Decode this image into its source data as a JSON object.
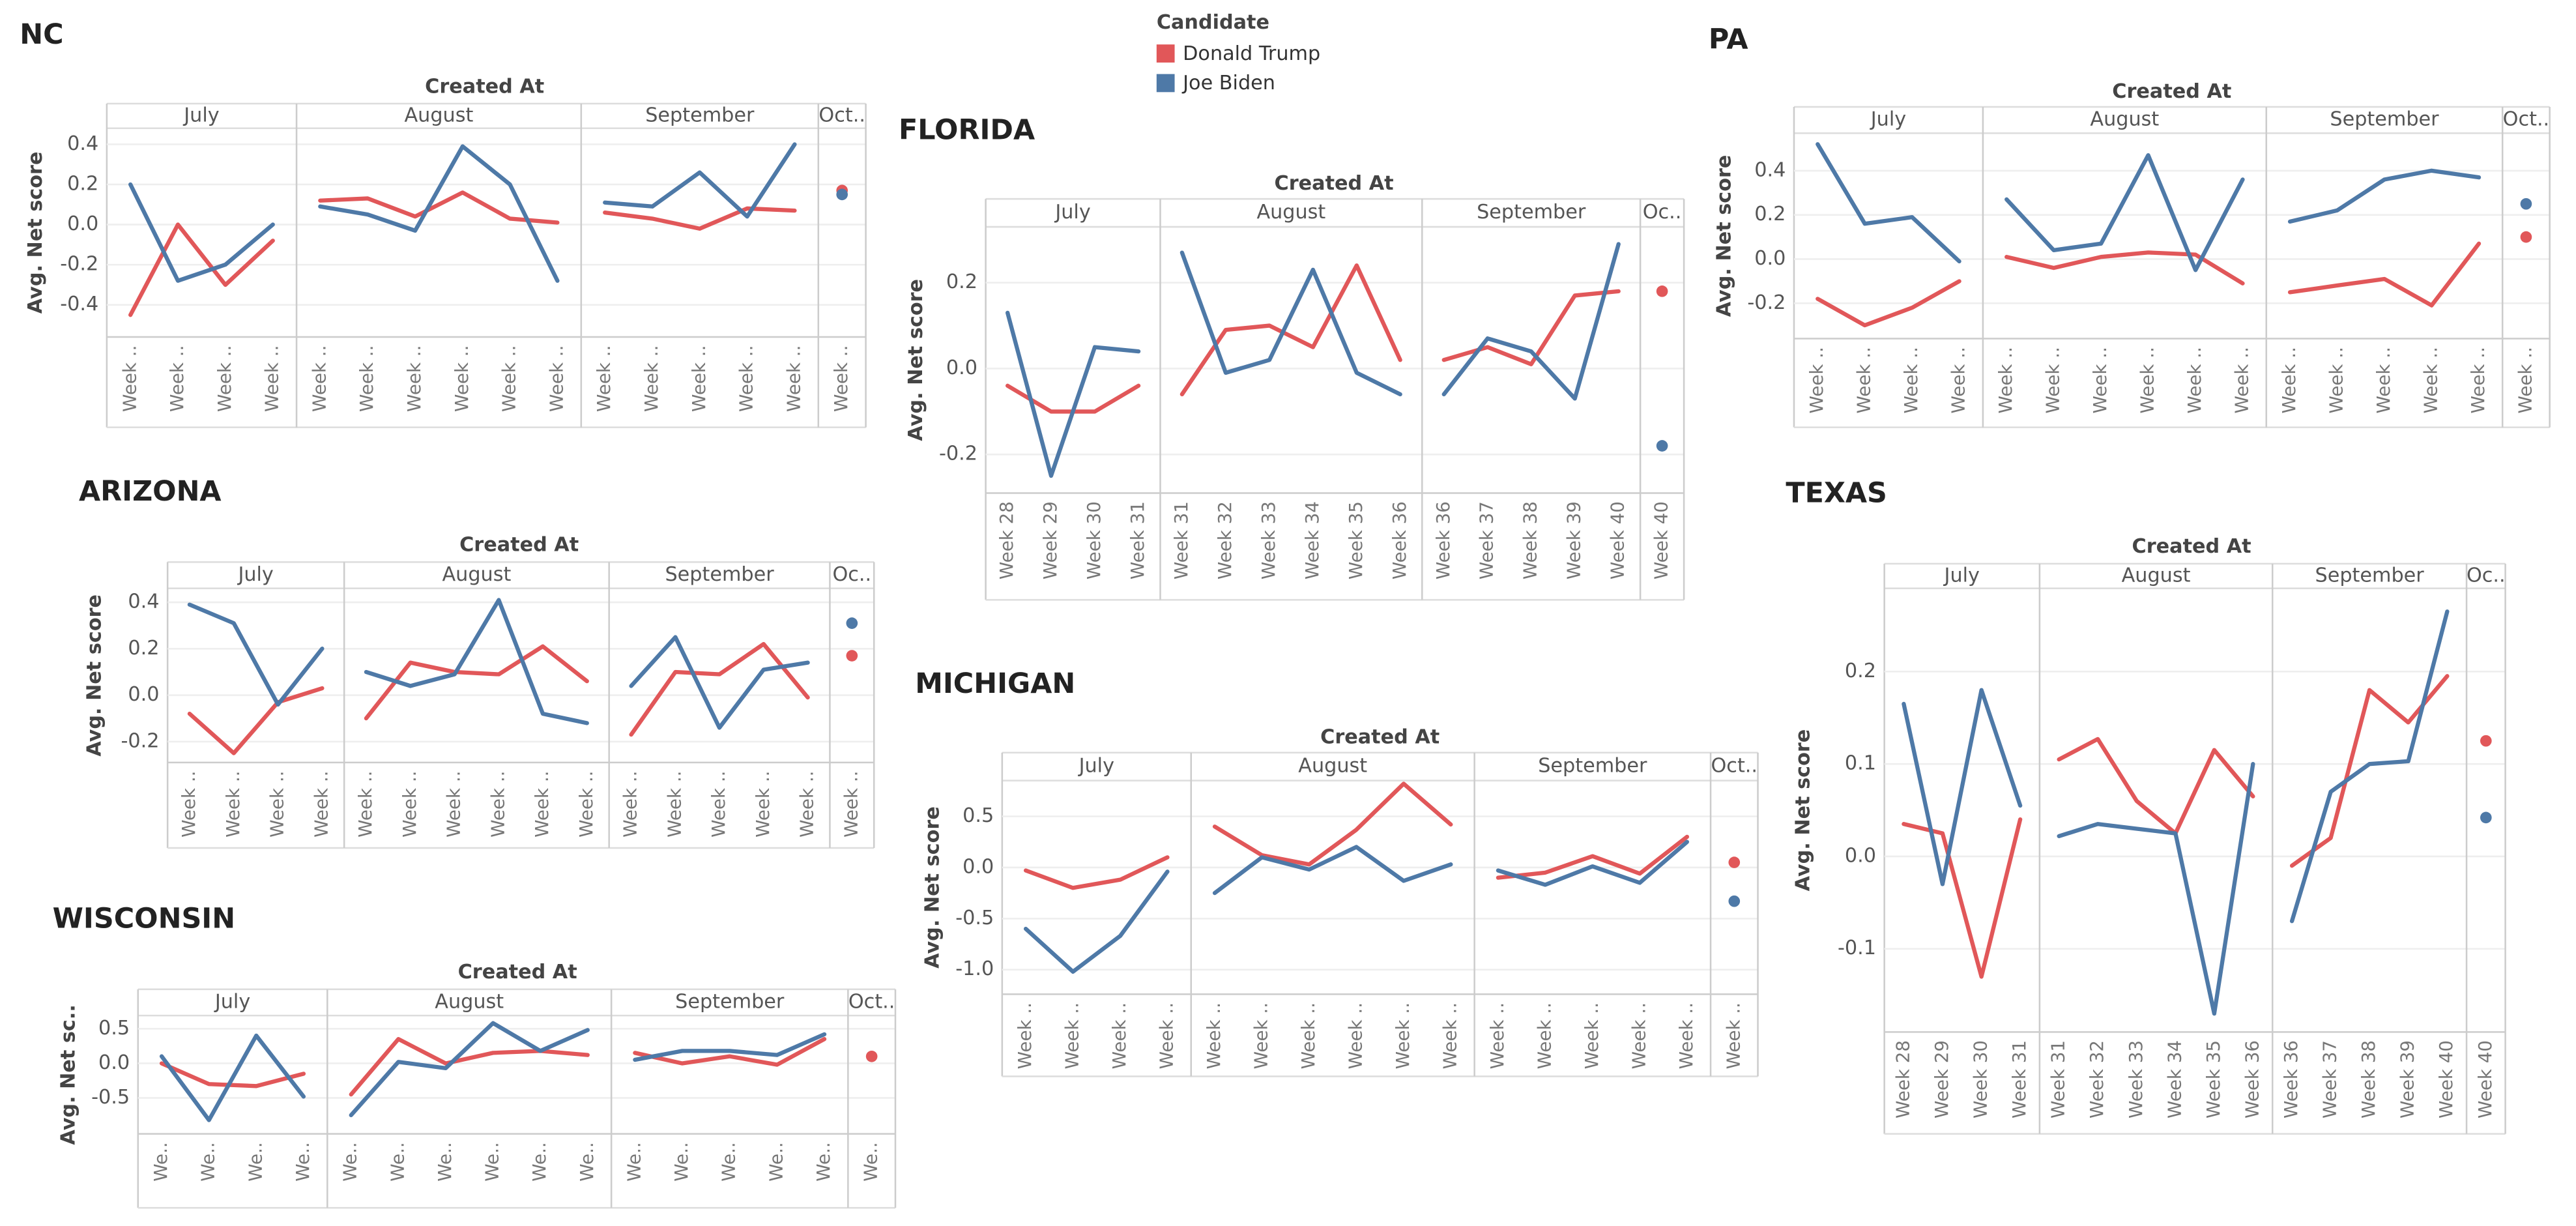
{
  "legend": {
    "title": "Candidate",
    "items": [
      {
        "name": "Donald Trump",
        "color": "#e15759"
      },
      {
        "name": "Joe Biden",
        "color": "#4e79a7"
      }
    ]
  },
  "chart_data": [
    {
      "type": "line",
      "title": "NC",
      "x_header": "Created At",
      "ylabel": "Avg. Net score",
      "ylim": [
        -0.56,
        0.48
      ],
      "yticks": [
        -0.4,
        -0.2,
        {
          "value": 0,
          "label": "0.0"
        },
        0.2,
        0.4
      ],
      "grid": true,
      "panels": [
        {
          "label": "July",
          "categories": [
            "Week ..",
            "Week ..",
            "Week ..",
            "Week .."
          ],
          "series": [
            {
              "values": [
                -0.45,
                0.0,
                -0.3,
                -0.08
              ]
            },
            {
              "values": [
                0.2,
                -0.28,
                -0.2,
                0.0
              ]
            }
          ]
        },
        {
          "label": "August",
          "categories": [
            "Week ..",
            "Week ..",
            "Week ..",
            "Week ..",
            "Week ..",
            "Week .."
          ],
          "series": [
            {
              "values": [
                0.12,
                0.13,
                0.04,
                0.16,
                0.03,
                0.01
              ]
            },
            {
              "values": [
                0.09,
                0.05,
                -0.03,
                0.39,
                0.2,
                -0.28
              ]
            }
          ]
        },
        {
          "label": "September",
          "categories": [
            "Week ..",
            "Week ..",
            "Week ..",
            "Week ..",
            "Week .."
          ],
          "series": [
            {
              "values": [
                0.06,
                0.03,
                -0.02,
                0.08,
                0.07
              ]
            },
            {
              "values": [
                0.11,
                0.09,
                0.26,
                0.04,
                0.4
              ]
            }
          ]
        },
        {
          "label": "Oct..",
          "categories": [
            "Week .."
          ],
          "series": [
            {
              "values": [
                0.17
              ]
            },
            {
              "values": [
                0.15
              ]
            }
          ]
        }
      ]
    },
    {
      "type": "line",
      "title": "FLORIDA",
      "x_header": "Created At",
      "ylabel": "Avg. Net score",
      "ylim": [
        -0.29,
        0.33
      ],
      "yticks": [
        -0.2,
        {
          "value": 0,
          "label": "0.0"
        },
        0.2
      ],
      "grid": true,
      "panels": [
        {
          "label": "July",
          "categories": [
            "Week 28",
            "Week 29",
            "Week 30",
            "Week 31"
          ],
          "series": [
            {
              "values": [
                -0.04,
                -0.1,
                -0.1,
                -0.04
              ]
            },
            {
              "values": [
                0.13,
                -0.25,
                0.05,
                0.04
              ]
            }
          ]
        },
        {
          "label": "August",
          "categories": [
            "Week 31",
            "Week 32",
            "Week 33",
            "Week 34",
            "Week 35",
            "Week 36"
          ],
          "series": [
            {
              "values": [
                -0.06,
                0.09,
                0.1,
                0.05,
                0.24,
                0.02
              ]
            },
            {
              "values": [
                0.27,
                -0.01,
                0.02,
                0.23,
                -0.01,
                -0.06
              ]
            }
          ]
        },
        {
          "label": "September",
          "categories": [
            "Week 36",
            "Week 37",
            "Week 38",
            "Week 39",
            "Week 40"
          ],
          "series": [
            {
              "values": [
                0.02,
                0.05,
                0.01,
                0.17,
                0.18
              ]
            },
            {
              "values": [
                -0.06,
                0.07,
                0.04,
                -0.07,
                0.29
              ]
            }
          ]
        },
        {
          "label": "Oc..",
          "categories": [
            "Week 40"
          ],
          "series": [
            {
              "values": [
                0.18
              ]
            },
            {
              "values": [
                -0.18
              ]
            }
          ]
        }
      ]
    },
    {
      "type": "line",
      "title": "PA",
      "x_header": "Created At",
      "ylabel": "Avg. Net score",
      "ylim": [
        -0.36,
        0.57
      ],
      "yticks": [
        -0.2,
        {
          "value": 0,
          "label": "0.0"
        },
        0.2,
        0.4
      ],
      "grid": true,
      "panels": [
        {
          "label": "July",
          "categories": [
            "Week ..",
            "Week ..",
            "Week ..",
            "Week .."
          ],
          "series": [
            {
              "values": [
                -0.18,
                -0.3,
                -0.22,
                -0.1
              ]
            },
            {
              "values": [
                0.52,
                0.16,
                0.19,
                -0.01
              ]
            }
          ]
        },
        {
          "label": "August",
          "categories": [
            "Week ..",
            "Week ..",
            "Week ..",
            "Week ..",
            "Week ..",
            "Week .."
          ],
          "series": [
            {
              "values": [
                0.01,
                -0.04,
                0.01,
                0.03,
                0.02,
                -0.11
              ]
            },
            {
              "values": [
                0.27,
                0.04,
                0.07,
                0.47,
                -0.05,
                0.36
              ]
            }
          ]
        },
        {
          "label": "September",
          "categories": [
            "Week ..",
            "Week ..",
            "Week ..",
            "Week ..",
            "Week .."
          ],
          "series": [
            {
              "values": [
                -0.15,
                -0.12,
                -0.09,
                -0.21,
                0.07
              ]
            },
            {
              "values": [
                0.17,
                0.22,
                0.36,
                0.4,
                0.37
              ]
            }
          ]
        },
        {
          "label": "Oct..",
          "categories": [
            "Week .."
          ],
          "series": [
            {
              "values": [
                0.1
              ]
            },
            {
              "values": [
                0.25
              ]
            }
          ]
        }
      ]
    },
    {
      "type": "line",
      "title": "ARIZONA",
      "x_header": "Created At",
      "ylabel": "Avg. Net score",
      "ylim": [
        -0.29,
        0.46
      ],
      "yticks": [
        -0.2,
        {
          "value": 0,
          "label": "0.0"
        },
        0.2,
        0.4
      ],
      "grid": true,
      "panels": [
        {
          "label": "July",
          "categories": [
            "Week ..",
            "Week ..",
            "Week ..",
            "Week .."
          ],
          "series": [
            {
              "values": [
                -0.08,
                -0.25,
                -0.03,
                0.03
              ]
            },
            {
              "values": [
                0.39,
                0.31,
                -0.04,
                0.2
              ]
            }
          ]
        },
        {
          "label": "August",
          "categories": [
            "Week ..",
            "Week ..",
            "Week ..",
            "Week ..",
            "Week ..",
            "Week .."
          ],
          "series": [
            {
              "values": [
                -0.1,
                0.14,
                0.1,
                0.09,
                0.21,
                0.06
              ]
            },
            {
              "values": [
                0.1,
                0.04,
                0.09,
                0.41,
                -0.08,
                -0.12
              ]
            }
          ]
        },
        {
          "label": "September",
          "categories": [
            "Week ..",
            "Week ..",
            "Week ..",
            "Week ..",
            "Week .."
          ],
          "series": [
            {
              "values": [
                -0.17,
                0.1,
                0.09,
                0.22,
                -0.01
              ]
            },
            {
              "values": [
                0.04,
                0.25,
                -0.14,
                0.11,
                0.14
              ]
            }
          ]
        },
        {
          "label": "Oc..",
          "categories": [
            "Week .."
          ],
          "series": [
            {
              "values": [
                0.17
              ]
            },
            {
              "values": [
                0.31
              ]
            }
          ]
        }
      ]
    },
    {
      "type": "line",
      "title": "MICHIGAN",
      "x_header": "Created At",
      "ylabel": "Avg. Net score",
      "ylim": [
        -1.24,
        0.85
      ],
      "yticks": [
        {
          "value": -1,
          "label": "-1.0"
        },
        -0.5,
        {
          "value": 0,
          "label": "0.0"
        },
        0.5
      ],
      "grid": true,
      "panels": [
        {
          "label": "July",
          "categories": [
            "Week ..",
            "Week ..",
            "Week ..",
            "Week .."
          ],
          "series": [
            {
              "values": [
                -0.03,
                -0.2,
                -0.12,
                0.1
              ]
            },
            {
              "values": [
                -0.6,
                -1.02,
                -0.67,
                -0.04
              ]
            }
          ]
        },
        {
          "label": "August",
          "categories": [
            "Week ..",
            "Week ..",
            "Week ..",
            "Week ..",
            "Week ..",
            "Week .."
          ],
          "series": [
            {
              "values": [
                0.4,
                0.12,
                0.03,
                0.37,
                0.82,
                0.42
              ]
            },
            {
              "values": [
                -0.25,
                0.1,
                -0.02,
                0.2,
                -0.13,
                0.03
              ]
            }
          ]
        },
        {
          "label": "September",
          "categories": [
            "Week ..",
            "Week ..",
            "Week ..",
            "Week ..",
            "Week .."
          ],
          "series": [
            {
              "values": [
                -0.1,
                -0.05,
                0.11,
                -0.06,
                0.3
              ]
            },
            {
              "values": [
                -0.03,
                -0.17,
                0.01,
                -0.15,
                0.25
              ]
            }
          ]
        },
        {
          "label": "Oct..",
          "categories": [
            "Week .."
          ],
          "series": [
            {
              "values": [
                0.05
              ]
            },
            {
              "values": [
                -0.33
              ]
            }
          ]
        }
      ]
    },
    {
      "type": "line",
      "title": "WISCONSIN",
      "x_header": "Created At",
      "ylabel": "Avg. Net sc..",
      "ylim": [
        -1.02,
        0.69
      ],
      "yticks": [
        -0.5,
        {
          "value": 0,
          "label": "0.0"
        },
        0.5
      ],
      "grid": true,
      "panels": [
        {
          "label": "July",
          "categories": [
            "We..",
            "We..",
            "We..",
            "We.."
          ],
          "series": [
            {
              "values": [
                0.0,
                -0.3,
                -0.33,
                -0.15
              ]
            },
            {
              "values": [
                0.1,
                -0.82,
                0.4,
                -0.48
              ]
            }
          ]
        },
        {
          "label": "August",
          "categories": [
            "We..",
            "We..",
            "We..",
            "We..",
            "We..",
            "We.."
          ],
          "series": [
            {
              "values": [
                -0.45,
                0.35,
                0.0,
                0.15,
                0.18,
                0.12
              ]
            },
            {
              "values": [
                -0.75,
                0.02,
                -0.07,
                0.58,
                0.18,
                0.48
              ]
            }
          ]
        },
        {
          "label": "September",
          "categories": [
            "We..",
            "We..",
            "We..",
            "We..",
            "We.."
          ],
          "series": [
            {
              "values": [
                0.15,
                0.0,
                0.1,
                -0.02,
                0.35
              ]
            },
            {
              "values": [
                0.05,
                0.18,
                0.18,
                0.12,
                0.42
              ]
            }
          ]
        },
        {
          "label": "Oct..",
          "categories": [
            "We.."
          ],
          "series": [
            {
              "values": [
                0.1
              ]
            },
            {
              "values": [
                null
              ]
            }
          ]
        }
      ]
    },
    {
      "type": "line",
      "title": "TEXAS",
      "x_header": "Created At",
      "ylabel": "Avg. Net score",
      "ylim": [
        -0.19,
        0.29
      ],
      "yticks": [
        -0.1,
        {
          "value": 0,
          "label": "0.0"
        },
        0.1,
        0.2
      ],
      "grid": true,
      "panels": [
        {
          "label": "July",
          "categories": [
            "Week 28",
            "Week 29",
            "Week 30",
            "Week 31"
          ],
          "series": [
            {
              "values": [
                0.035,
                0.025,
                -0.13,
                0.04
              ]
            },
            {
              "values": [
                0.165,
                -0.03,
                0.18,
                0.055
              ]
            }
          ]
        },
        {
          "label": "August",
          "categories": [
            "Week 31",
            "Week 32",
            "Week 33",
            "Week 34",
            "Week 35",
            "Week 36"
          ],
          "series": [
            {
              "values": [
                0.105,
                0.127,
                0.06,
                0.025,
                0.115,
                0.065
              ]
            },
            {
              "values": [
                0.022,
                0.035,
                0.03,
                0.025,
                -0.17,
                0.1
              ]
            }
          ]
        },
        {
          "label": "September",
          "categories": [
            "Week 36",
            "Week 37",
            "Week 38",
            "Week 39",
            "Week 40"
          ],
          "series": [
            {
              "values": [
                -0.01,
                0.02,
                0.18,
                0.145,
                0.195
              ]
            },
            {
              "values": [
                -0.07,
                0.07,
                0.1,
                0.103,
                0.265
              ]
            }
          ]
        },
        {
          "label": "Oc..",
          "categories": [
            "Week 40"
          ],
          "series": [
            {
              "values": [
                0.125
              ]
            },
            {
              "values": [
                0.042
              ]
            }
          ]
        }
      ]
    }
  ]
}
